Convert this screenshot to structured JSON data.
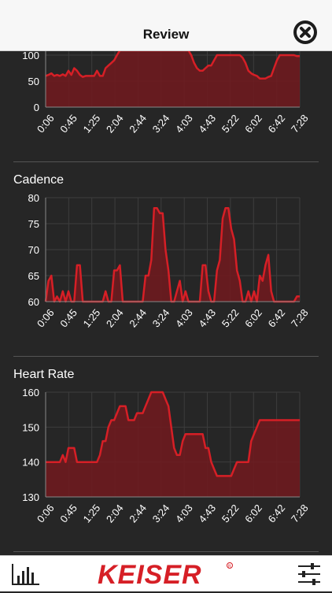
{
  "header": {
    "title": "Review"
  },
  "icons": {
    "close": "close-circle-icon",
    "stats": "bar-chart-icon",
    "settings": "sliders-icon"
  },
  "footer": {
    "logo_text": "KEISER"
  },
  "colors": {
    "line": "#d61f26",
    "fill": "#6e1b1f",
    "grid": "#3d3d3d",
    "axis": "#ffffff"
  },
  "x_ticks": [
    "0:06",
    "0:45",
    "1:25",
    "2:04",
    "2:44",
    "3:24",
    "4:03",
    "4:43",
    "5:22",
    "6:02",
    "6:42",
    "7:28"
  ],
  "charts": [
    {
      "id": "power",
      "title": "",
      "ylim": [
        0,
        100
      ],
      "y_ticks": [
        "0",
        "50",
        "100"
      ],
      "values": [
        60,
        62,
        65,
        60,
        62,
        60,
        63,
        60,
        70,
        62,
        75,
        70,
        62,
        58,
        60,
        60,
        60,
        60,
        70,
        60,
        60,
        75,
        80,
        85,
        90,
        100,
        110,
        110,
        110,
        110,
        110,
        110,
        110,
        110,
        110,
        110,
        110,
        110,
        110,
        110,
        110,
        110,
        110,
        110,
        110,
        110,
        110,
        110,
        110,
        110,
        110,
        100,
        85,
        75,
        70,
        70,
        75,
        80,
        80,
        90,
        100,
        100,
        100,
        100,
        100,
        100,
        100,
        100,
        100,
        95,
        85,
        70,
        65,
        62,
        60,
        55,
        55,
        55,
        58,
        60,
        75,
        90,
        100,
        100,
        100,
        100,
        100,
        100,
        98,
        98
      ]
    },
    {
      "id": "cadence",
      "title": "Cadence",
      "ylim": [
        60,
        80
      ],
      "y_ticks": [
        "60",
        "65",
        "70",
        "75",
        "80"
      ],
      "values": [
        60,
        64,
        65,
        60,
        61,
        60,
        62,
        60,
        62,
        60,
        60,
        67,
        67,
        60,
        60,
        60,
        60,
        60,
        60,
        60,
        60,
        62,
        60,
        60,
        66,
        66,
        67,
        60,
        60,
        60,
        60,
        60,
        60,
        60,
        60,
        65,
        65,
        68,
        78,
        78,
        77,
        77,
        70,
        66,
        60,
        60,
        62,
        64,
        60,
        62,
        60,
        60,
        60,
        60,
        60,
        67,
        67,
        62,
        60,
        60,
        66,
        68,
        76,
        78,
        78,
        74,
        72,
        66,
        64,
        60,
        60,
        62,
        60,
        62,
        60,
        65,
        64,
        67,
        69,
        62,
        60,
        60,
        60,
        60,
        60,
        60,
        60,
        60,
        61,
        61
      ]
    },
    {
      "id": "heart_rate",
      "title": "Heart Rate",
      "ylim": [
        130,
        160
      ],
      "y_ticks": [
        "130",
        "140",
        "150",
        "160"
      ],
      "values": [
        140,
        140,
        140,
        140,
        140,
        140,
        142,
        140,
        144,
        144,
        144,
        140,
        140,
        140,
        140,
        140,
        140,
        140,
        140,
        142,
        146,
        146,
        150,
        152,
        152,
        154,
        156,
        156,
        156,
        152,
        152,
        152,
        154,
        154,
        154,
        156,
        158,
        160,
        160,
        160,
        160,
        160,
        158,
        156,
        150,
        144,
        142,
        142,
        146,
        148,
        148,
        148,
        148,
        148,
        148,
        148,
        144,
        144,
        140,
        138,
        136,
        136,
        136,
        136,
        136,
        136,
        138,
        140,
        140,
        140,
        140,
        140,
        146,
        148,
        150,
        152,
        152,
        152,
        152,
        152,
        152,
        152,
        152,
        152,
        152,
        152,
        152,
        152,
        152,
        152
      ]
    }
  ]
}
